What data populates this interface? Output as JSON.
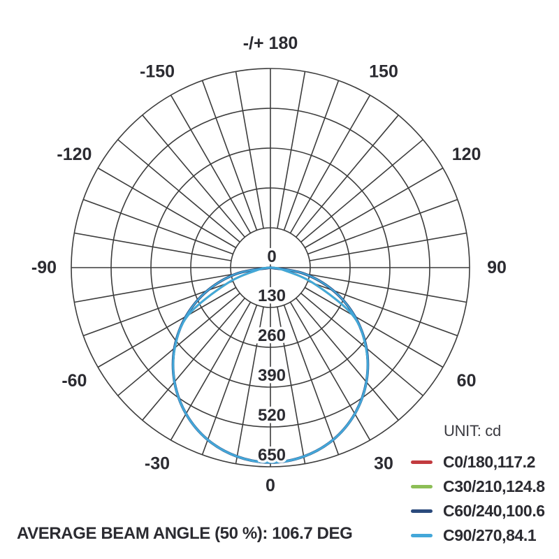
{
  "meta": {
    "background": "#ffffff",
    "grid_color": "#3c3c3c",
    "text_color": "#2b2b31"
  },
  "caption": "AVERAGE BEAM ANGLE (50 %): 106.7 DEG",
  "legend": {
    "unit_label": "UNIT: cd",
    "entries": [
      {
        "label": "C0/180,117.2",
        "color": "#c23b3f"
      },
      {
        "label": "C30/210,124.8",
        "color": "#8cbe56"
      },
      {
        "label": "C60/240,100.6",
        "color": "#2b4a7c"
      },
      {
        "label": "C90/270,84.1",
        "color": "#43a7d9"
      }
    ]
  },
  "chart_data": {
    "type": "polar-photometric",
    "unit": "cd",
    "radial_ticks": [
      0,
      130,
      260,
      390,
      520,
      650
    ],
    "radial_max": 650,
    "angle_step_deg": 10,
    "angle_ticks": [
      {
        "deg": 180,
        "label": "-/+ 180"
      },
      {
        "deg": -150,
        "label": "-150"
      },
      {
        "deg": 150,
        "label": "150"
      },
      {
        "deg": -120,
        "label": "-120"
      },
      {
        "deg": 120,
        "label": "120"
      },
      {
        "deg": -90,
        "label": "-90"
      },
      {
        "deg": 90,
        "label": "90"
      },
      {
        "deg": -60,
        "label": "-60"
      },
      {
        "deg": 60,
        "label": "60"
      },
      {
        "deg": -30,
        "label": "-30"
      },
      {
        "deg": 30,
        "label": "30"
      },
      {
        "deg": 0,
        "label": "0"
      }
    ],
    "series": [
      {
        "plane": "C0/180",
        "beam_angle_deg": 117.2,
        "color": "#c23b3f",
        "peak_cd": 636,
        "profile": "wide"
      },
      {
        "plane": "C30/210",
        "beam_angle_deg": 124.8,
        "color": "#8cbe56",
        "peak_cd": 636,
        "profile": "narrow"
      },
      {
        "plane": "C60/240",
        "beam_angle_deg": 100.6,
        "color": "#2b4a7c",
        "peak_cd": 636,
        "profile": "wide"
      },
      {
        "plane": "C90/270",
        "beam_angle_deg": 84.1,
        "color": "#43a7d9",
        "peak_cd": 636,
        "profile": "narrow"
      }
    ],
    "profiles": {
      "wide": {
        "cd_by_10deg": [
          636,
          626,
          598,
          551,
          487,
          409,
          318,
          218,
          110,
          0
        ]
      },
      "narrow": {
        "cd_by_10deg": [
          636,
          626,
          598,
          551,
          487,
          407,
          310,
          150,
          40,
          0
        ]
      }
    },
    "average_beam_angle_pct": 50,
    "average_beam_angle_deg": 106.7
  }
}
